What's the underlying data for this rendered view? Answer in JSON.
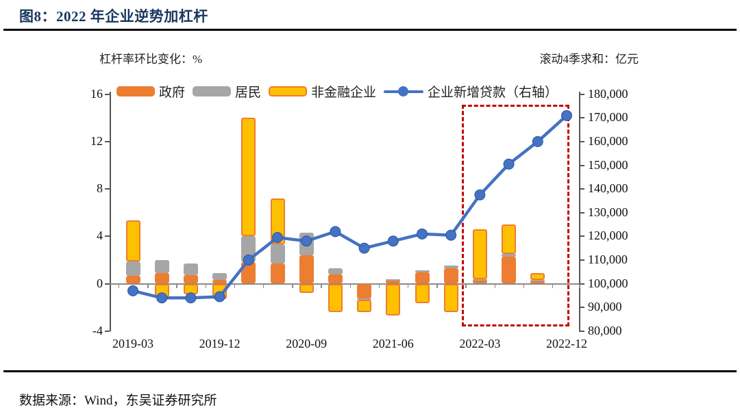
{
  "header": {
    "title": "图8：2022 年企业逆势加杠杆"
  },
  "footer": {
    "source": "数据来源：Wind，东吴证券研究所"
  },
  "chart_data": {
    "type": "bar+line",
    "title": "图8：2022 年企业逆势加杠杆",
    "left_axis": {
      "title": "杠杆率环比变化：%",
      "min": -4,
      "max": 16,
      "ticks": [
        "16",
        "12",
        "8",
        "4",
        "0",
        "-4"
      ],
      "tick_values": [
        16,
        12,
        8,
        4,
        0,
        -4
      ]
    },
    "right_axis": {
      "title": "滚动4季求和：亿元",
      "min": 80000,
      "max": 180000,
      "labels": [
        "180,000",
        "170,000",
        "160,000",
        "150,000",
        "140,000",
        "130,000",
        "120,000",
        "110,000",
        "100,000",
        "90,000",
        "80,000"
      ],
      "tick_values": [
        180000,
        170000,
        160000,
        150000,
        140000,
        130000,
        120000,
        110000,
        100000,
        90000,
        80000
      ]
    },
    "categories": [
      "2019-03",
      "2019-06",
      "2019-09",
      "2019-12",
      "2020-03",
      "2020-06",
      "2020-09",
      "2020-12",
      "2021-03",
      "2021-06",
      "2021-09",
      "2021-12",
      "2022-03",
      "2022-06",
      "2022-09",
      "2022-12"
    ],
    "x_tick_labels": [
      "2019-03",
      "2019-12",
      "2020-09",
      "2021-06",
      "2022-03",
      "2022-12"
    ],
    "x_tick_indices": [
      0,
      3,
      6,
      9,
      12,
      15
    ],
    "series": [
      {
        "name": "政府",
        "type": "bar",
        "color": "#ED7D31",
        "values": [
          0.65,
          0.9,
          0.7,
          0.3,
          1.8,
          1.7,
          2.4,
          0.8,
          -1.25,
          0.3,
          0.95,
          1.3,
          0.3,
          2.3,
          0.2,
          0
        ]
      },
      {
        "name": "居民",
        "type": "bar",
        "color": "#A6A6A6",
        "values": [
          1.2,
          1.1,
          1.0,
          0.6,
          2.2,
          1.6,
          1.9,
          0.5,
          -0.1,
          0.1,
          0.2,
          0.25,
          0.1,
          0.2,
          0.1,
          0
        ]
      },
      {
        "name": "非金融企业",
        "type": "bar",
        "color": "#FFC000",
        "border_color": "#ED7D31",
        "values": [
          3.5,
          -1.1,
          -0.9,
          -1.3,
          10.0,
          3.9,
          -0.8,
          -2.4,
          -1.05,
          -2.7,
          -1.65,
          -2.4,
          4.2,
          2.5,
          0.6,
          0
        ]
      },
      {
        "name": "企业新增贷款（右轴）",
        "type": "line",
        "axis": "right",
        "color": "#4472C4",
        "values": [
          97000,
          94000,
          94000,
          94500,
          110000,
          119500,
          118000,
          122000,
          115000,
          118000,
          121000,
          120500,
          137500,
          150500,
          160000,
          171000
        ]
      }
    ],
    "highlight_box": {
      "from": "2022-03",
      "to": "2022-12",
      "color": "#C00000",
      "style": "dashed"
    },
    "legend_position": "top",
    "grid": false
  }
}
